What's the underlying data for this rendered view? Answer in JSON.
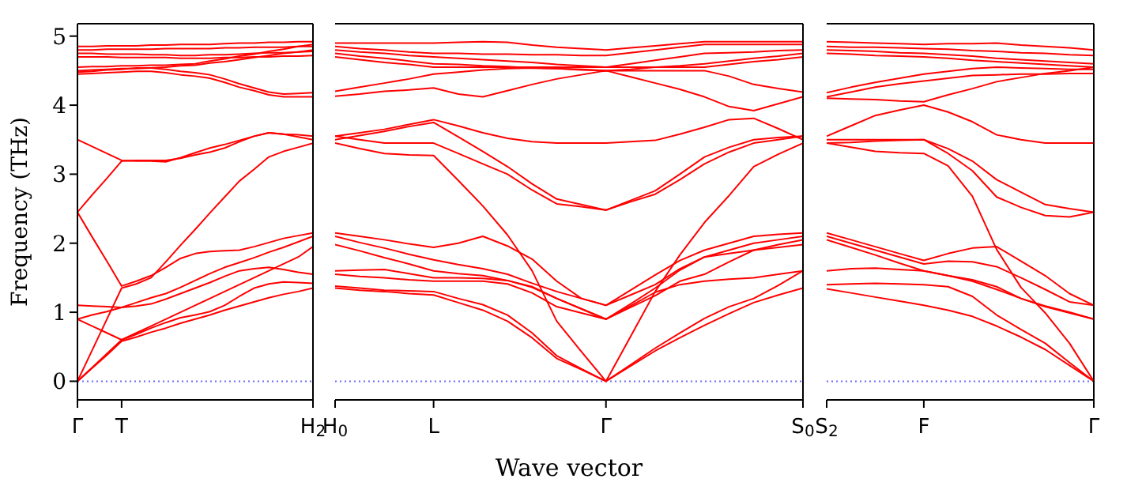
{
  "chart_data": [
    {
      "type": "line",
      "ylabel": "Frequency (THz)",
      "categories": [
        "Γ",
        null,
        null,
        "T",
        null,
        null,
        null,
        null,
        null,
        null,
        null,
        null,
        null,
        null,
        null,
        null,
        "H$_{2}$"
      ],
      "ylim": [
        -0.27,
        5.18
      ],
      "yticks": [
        0,
        1,
        2,
        3,
        4,
        5
      ],
      "marker": "none",
      "line_style": "solid",
      "ref_lines": [
        {
          "axis": "y",
          "value": 0,
          "color": "#6a6aff",
          "line_style": "dotted"
        }
      ],
      "series": [
        {
          "color": "#ff0000",
          "values": [
            0,
            0.19,
            0.38,
            0.58,
            0.64,
            0.71,
            0.77,
            0.84,
            0.9,
            0.96,
            1.03,
            1.09,
            1.15,
            1.21,
            1.26,
            1.3,
            1.35
          ]
        },
        {
          "color": "#ff0000",
          "values": [
            0.9,
            0.8,
            0.7,
            0.6,
            0.68,
            0.77,
            0.85,
            0.92,
            0.96,
            1.01,
            1.1,
            1.23,
            1.35,
            1.41,
            1.44,
            1.43,
            1.42
          ]
        },
        {
          "color": "#ff0000",
          "values": [
            0,
            0.45,
            0.9,
            1.35,
            1.41,
            1.5,
            1.73,
            1.97,
            2.2,
            2.44,
            2.67,
            2.9,
            3.07,
            3.25,
            3.33,
            3.39,
            3.45
          ]
        },
        {
          "color": "#ff0000",
          "values": [
            0,
            0.2,
            0.4,
            0.6,
            0.7,
            0.8,
            0.9,
            1.0,
            1.1,
            1.2,
            1.3,
            1.4,
            1.5,
            1.6,
            1.7,
            1.8,
            1.95
          ]
        },
        {
          "color": "#ff0000",
          "values": [
            1.1,
            1.09,
            1.08,
            1.07,
            1.09,
            1.12,
            1.19,
            1.27,
            1.35,
            1.43,
            1.52,
            1.6,
            1.63,
            1.65,
            1.62,
            1.58,
            1.55
          ]
        },
        {
          "color": "#ff0000",
          "values": [
            0.9,
            0.96,
            1.01,
            1.07,
            1.14,
            1.21,
            1.27,
            1.36,
            1.46,
            1.56,
            1.65,
            1.72,
            1.79,
            1.87,
            1.94,
            2.02,
            2.1
          ]
        },
        {
          "color": "#ff0000",
          "values": [
            2.45,
            2.09,
            1.74,
            1.38,
            1.45,
            1.53,
            1.65,
            1.78,
            1.85,
            1.88,
            1.89,
            1.9,
            1.95,
            2.01,
            2.07,
            2.11,
            2.15
          ]
        },
        {
          "color": "#ff0000",
          "values": [
            2.45,
            2.7,
            2.94,
            3.19,
            3.2,
            3.2,
            3.2,
            3.23,
            3.28,
            3.32,
            3.38,
            3.47,
            3.55,
            3.6,
            3.58,
            3.54,
            3.5
          ]
        },
        {
          "color": "#ff0000",
          "values": [
            3.5,
            3.4,
            3.3,
            3.2,
            3.19,
            3.19,
            3.18,
            3.24,
            3.31,
            3.38,
            3.43,
            3.49,
            3.55,
            3.6,
            3.58,
            3.57,
            3.55
          ]
        },
        {
          "color": "#ff0000",
          "values": [
            4.85,
            4.85,
            4.86,
            4.86,
            4.86,
            4.87,
            4.87,
            4.88,
            4.88,
            4.88,
            4.89,
            4.9,
            4.9,
            4.91,
            4.91,
            4.92,
            4.92
          ]
        },
        {
          "color": "#ff0000",
          "values": [
            4.8,
            4.8,
            4.81,
            4.81,
            4.81,
            4.81,
            4.82,
            4.82,
            4.82,
            4.82,
            4.83,
            4.83,
            4.84,
            4.84,
            4.84,
            4.85,
            4.85
          ]
        },
        {
          "color": "#ff0000",
          "values": [
            4.75,
            4.75,
            4.74,
            4.74,
            4.74,
            4.73,
            4.73,
            4.72,
            4.72,
            4.73,
            4.73,
            4.74,
            4.75,
            4.76,
            4.76,
            4.77,
            4.78
          ]
        },
        {
          "color": "#ff0000",
          "values": [
            4.7,
            4.7,
            4.7,
            4.69,
            4.69,
            4.69,
            4.69,
            4.68,
            4.68,
            4.68,
            4.69,
            4.69,
            4.7,
            4.7,
            4.71,
            4.71,
            4.72
          ]
        },
        {
          "color": "#ff0000",
          "values": [
            4.55,
            4.56,
            4.56,
            4.57,
            4.57,
            4.58,
            4.58,
            4.59,
            4.6,
            4.64,
            4.67,
            4.71,
            4.74,
            4.78,
            4.81,
            4.85,
            4.88
          ]
        },
        {
          "color": "#ff0000",
          "values": [
            4.5,
            4.51,
            4.52,
            4.53,
            4.53,
            4.54,
            4.55,
            4.57,
            4.58,
            4.61,
            4.63,
            4.66,
            4.69,
            4.72,
            4.75,
            4.77,
            4.8
          ]
        },
        {
          "color": "#ff0000",
          "values": [
            4.48,
            4.49,
            4.51,
            4.52,
            4.54,
            4.54,
            4.52,
            4.49,
            4.47,
            4.44,
            4.38,
            4.31,
            4.25,
            4.19,
            4.16,
            4.17,
            4.18
          ]
        },
        {
          "color": "#ff0000",
          "values": [
            4.45,
            4.46,
            4.47,
            4.48,
            4.49,
            4.49,
            4.47,
            4.44,
            4.42,
            4.39,
            4.33,
            4.26,
            4.21,
            4.15,
            4.12,
            4.12,
            4.12
          ]
        }
      ]
    },
    {
      "type": "line",
      "xlabel": "Wave vector",
      "categories": [
        "H$_{0}$",
        null,
        null,
        null,
        "L",
        null,
        null,
        null,
        null,
        null,
        null,
        "Γ",
        null,
        null,
        null,
        null,
        null,
        null,
        null,
        "S$_{0}$"
      ],
      "ylim": [
        -0.27,
        5.18
      ],
      "yticks": [
        0,
        1,
        2,
        3,
        4,
        5
      ],
      "tick_labels": "x",
      "marker": "none",
      "line_style": "solid",
      "ref_lines": [
        {
          "axis": "y",
          "value": 0,
          "color": "#6a6aff",
          "line_style": "dotted"
        }
      ],
      "series": [
        {
          "color": "#ff0000",
          "values": [
            1.35,
            1.32,
            1.3,
            1.27,
            1.25,
            1.14,
            1.03,
            0.87,
            0.63,
            0.33,
            0.17,
            0,
            0.22,
            0.44,
            0.63,
            0.81,
            0.98,
            1.14,
            1.25,
            1.35
          ]
        },
        {
          "color": "#ff0000",
          "values": [
            1.38,
            1.35,
            1.32,
            1.31,
            1.3,
            1.2,
            1.11,
            0.96,
            0.7,
            0.37,
            0.18,
            0,
            0.24,
            0.48,
            0.7,
            0.91,
            1.08,
            1.2,
            1.39,
            1.6
          ]
        },
        {
          "color": "#ff0000",
          "values": [
            3.45,
            3.37,
            3.3,
            3.28,
            3.27,
            2.91,
            2.54,
            2.12,
            1.6,
            0.87,
            0.43,
            0,
            0.65,
            1.3,
            1.83,
            2.3,
            2.69,
            3.11,
            3.29,
            3.45
          ]
        },
        {
          "color": "#ff0000",
          "values": [
            2.15,
            2.1,
            2.05,
            1.99,
            1.94,
            2.0,
            2.1,
            1.96,
            1.77,
            1.45,
            1.2,
            1.1,
            1.32,
            1.54,
            1.75,
            1.9,
            2.0,
            2.1,
            2.13,
            2.15
          ]
        },
        {
          "color": "#ff0000",
          "values": [
            2.1,
            2.01,
            1.93,
            1.84,
            1.76,
            1.69,
            1.63,
            1.55,
            1.42,
            1.3,
            1.2,
            1.1,
            1.25,
            1.4,
            1.63,
            1.8,
            1.9,
            2.0,
            2.05,
            2.1
          ]
        },
        {
          "color": "#ff0000",
          "values": [
            1.98,
            1.89,
            1.79,
            1.7,
            1.6,
            1.56,
            1.53,
            1.46,
            1.36,
            1.2,
            1.05,
            0.9,
            1.07,
            1.24,
            1.45,
            1.55,
            1.73,
            1.9,
            1.98,
            2.05
          ]
        },
        {
          "color": "#ff0000",
          "values": [
            1.6,
            1.61,
            1.62,
            1.56,
            1.5,
            1.5,
            1.49,
            1.46,
            1.37,
            1.2,
            1.05,
            0.9,
            1.12,
            1.35,
            1.61,
            1.8,
            1.85,
            1.9,
            1.94,
            1.98
          ]
        },
        {
          "color": "#ff0000",
          "values": [
            1.55,
            1.52,
            1.5,
            1.47,
            1.45,
            1.45,
            1.45,
            1.41,
            1.28,
            1.08,
            0.99,
            0.9,
            1.09,
            1.29,
            1.4,
            1.45,
            1.48,
            1.5,
            1.55,
            1.6
          ]
        },
        {
          "color": "#ff0000",
          "values": [
            3.55,
            3.6,
            3.65,
            3.72,
            3.79,
            3.7,
            3.6,
            3.52,
            3.47,
            3.45,
            3.45,
            3.45,
            3.47,
            3.49,
            3.58,
            3.68,
            3.79,
            3.81,
            3.66,
            3.5
          ]
        },
        {
          "color": "#ff0000",
          "values": [
            3.5,
            3.56,
            3.62,
            3.69,
            3.75,
            3.54,
            3.33,
            3.11,
            2.86,
            2.64,
            2.56,
            2.48,
            2.62,
            2.76,
            3.0,
            3.25,
            3.39,
            3.5,
            3.53,
            3.55
          ]
        },
        {
          "color": "#ff0000",
          "values": [
            3.55,
            3.5,
            3.45,
            3.45,
            3.45,
            3.3,
            3.15,
            3.0,
            2.77,
            2.57,
            2.53,
            2.48,
            2.6,
            2.71,
            2.92,
            3.15,
            3.32,
            3.45,
            3.5,
            3.55
          ]
        },
        {
          "color": "#ff0000",
          "values": [
            4.9,
            4.9,
            4.9,
            4.9,
            4.9,
            4.91,
            4.92,
            4.91,
            4.87,
            4.84,
            4.82,
            4.8,
            4.83,
            4.86,
            4.89,
            4.92,
            4.92,
            4.92,
            4.92,
            4.92
          ]
        },
        {
          "color": "#ff0000",
          "values": [
            4.85,
            4.82,
            4.8,
            4.77,
            4.75,
            4.75,
            4.74,
            4.74,
            4.73,
            4.73,
            4.72,
            4.72,
            4.76,
            4.8,
            4.84,
            4.88,
            4.88,
            4.88,
            4.88,
            4.88
          ]
        },
        {
          "color": "#ff0000",
          "values": [
            4.8,
            4.77,
            4.75,
            4.72,
            4.7,
            4.68,
            4.66,
            4.64,
            4.62,
            4.59,
            4.57,
            4.55,
            4.6,
            4.65,
            4.7,
            4.75,
            4.76,
            4.77,
            4.79,
            4.8
          ]
        },
        {
          "color": "#ff0000",
          "values": [
            4.75,
            4.71,
            4.68,
            4.64,
            4.6,
            4.59,
            4.57,
            4.56,
            4.54,
            4.53,
            4.51,
            4.5,
            4.52,
            4.55,
            4.57,
            4.6,
            4.64,
            4.68,
            4.71,
            4.75
          ]
        },
        {
          "color": "#ff0000",
          "values": [
            4.7,
            4.66,
            4.62,
            4.59,
            4.55,
            4.55,
            4.55,
            4.55,
            4.55,
            4.55,
            4.55,
            4.55,
            4.55,
            4.55,
            4.55,
            4.55,
            4.59,
            4.63,
            4.66,
            4.7
          ]
        },
        {
          "color": "#ff0000",
          "values": [
            4.2,
            4.26,
            4.32,
            4.38,
            4.45,
            4.48,
            4.51,
            4.53,
            4.54,
            4.53,
            4.52,
            4.5,
            4.5,
            4.5,
            4.5,
            4.5,
            4.42,
            4.3,
            4.24,
            4.19
          ]
        },
        {
          "color": "#ff0000",
          "values": [
            4.13,
            4.16,
            4.2,
            4.22,
            4.25,
            4.16,
            4.12,
            4.21,
            4.3,
            4.38,
            4.44,
            4.5,
            4.41,
            4.32,
            4.23,
            4.12,
            3.98,
            3.92,
            4.02,
            4.12
          ]
        }
      ]
    },
    {
      "type": "line",
      "categories": [
        "S$_{2}$",
        null,
        null,
        null,
        "F",
        null,
        null,
        null,
        null,
        null,
        null,
        "Γ"
      ],
      "ylim": [
        -0.27,
        5.18
      ],
      "yticks": [
        0,
        1,
        2,
        3,
        4,
        5
      ],
      "tick_labels": "x",
      "marker": "none",
      "line_style": "solid",
      "ref_lines": [
        {
          "axis": "y",
          "value": 0,
          "color": "#6a6aff",
          "line_style": "dotted"
        }
      ],
      "series": [
        {
          "color": "#ff0000",
          "values": [
            4.92,
            4.91,
            4.9,
            4.89,
            4.88,
            4.89,
            4.89,
            4.9,
            4.87,
            4.85,
            4.83,
            4.8
          ]
        },
        {
          "color": "#ff0000",
          "values": [
            4.85,
            4.84,
            4.84,
            4.83,
            4.82,
            4.81,
            4.79,
            4.78,
            4.76,
            4.75,
            4.73,
            4.72
          ]
        },
        {
          "color": "#ff0000",
          "values": [
            4.8,
            4.79,
            4.78,
            4.76,
            4.75,
            4.73,
            4.71,
            4.68,
            4.66,
            4.64,
            4.62,
            4.6
          ]
        },
        {
          "color": "#ff0000",
          "values": [
            4.75,
            4.74,
            4.72,
            4.71,
            4.7,
            4.68,
            4.65,
            4.63,
            4.61,
            4.59,
            4.57,
            4.55
          ]
        },
        {
          "color": "#ff0000",
          "values": [
            4.18,
            4.26,
            4.33,
            4.39,
            4.45,
            4.49,
            4.53,
            4.55,
            4.54,
            4.53,
            4.52,
            4.52
          ]
        },
        {
          "color": "#ff0000",
          "values": [
            4.12,
            4.19,
            4.26,
            4.31,
            4.35,
            4.39,
            4.43,
            4.44,
            4.45,
            4.45,
            4.46,
            4.46
          ]
        },
        {
          "color": "#ff0000",
          "values": [
            4.1,
            4.09,
            4.08,
            4.06,
            4.05,
            4.15,
            4.24,
            4.34,
            4.4,
            4.46,
            4.5,
            4.55
          ]
        },
        {
          "color": "#ff0000",
          "values": [
            3.55,
            3.7,
            3.85,
            3.93,
            4.0,
            3.9,
            3.76,
            3.57,
            3.5,
            3.45,
            3.45,
            3.45
          ]
        },
        {
          "color": "#ff0000",
          "values": [
            3.5,
            3.5,
            3.5,
            3.5,
            3.5,
            3.37,
            3.19,
            2.92,
            2.74,
            2.56,
            2.5,
            2.45
          ]
        },
        {
          "color": "#ff0000",
          "values": [
            3.45,
            3.46,
            3.48,
            3.49,
            3.5,
            3.3,
            3.05,
            2.67,
            2.52,
            2.4,
            2.38,
            2.45
          ]
        },
        {
          "color": "#ff0000",
          "values": [
            3.45,
            3.39,
            3.33,
            3.31,
            3.3,
            3.12,
            2.68,
            1.91,
            1.36,
            0.99,
            0.55,
            0
          ]
        },
        {
          "color": "#ff0000",
          "values": [
            2.15,
            2.05,
            1.95,
            1.85,
            1.75,
            1.85,
            1.93,
            1.95,
            1.74,
            1.53,
            1.27,
            1.1
          ]
        },
        {
          "color": "#ff0000",
          "values": [
            2.1,
            2.0,
            1.9,
            1.8,
            1.7,
            1.74,
            1.73,
            1.66,
            1.5,
            1.33,
            1.15,
            1.1
          ]
        },
        {
          "color": "#ff0000",
          "values": [
            2.05,
            1.94,
            1.83,
            1.71,
            1.6,
            1.53,
            1.47,
            1.37,
            1.2,
            1.09,
            1.0,
            0.9
          ]
        },
        {
          "color": "#ff0000",
          "values": [
            1.6,
            1.63,
            1.64,
            1.62,
            1.6,
            1.53,
            1.45,
            1.33,
            1.2,
            1.08,
            0.99,
            0.9
          ]
        },
        {
          "color": "#ff0000",
          "values": [
            1.4,
            1.41,
            1.42,
            1.41,
            1.4,
            1.37,
            1.23,
            0.96,
            0.75,
            0.55,
            0.27,
            0
          ]
        },
        {
          "color": "#ff0000",
          "values": [
            1.34,
            1.28,
            1.22,
            1.16,
            1.1,
            1.03,
            0.94,
            0.8,
            0.64,
            0.46,
            0.23,
            0
          ]
        }
      ]
    }
  ]
}
